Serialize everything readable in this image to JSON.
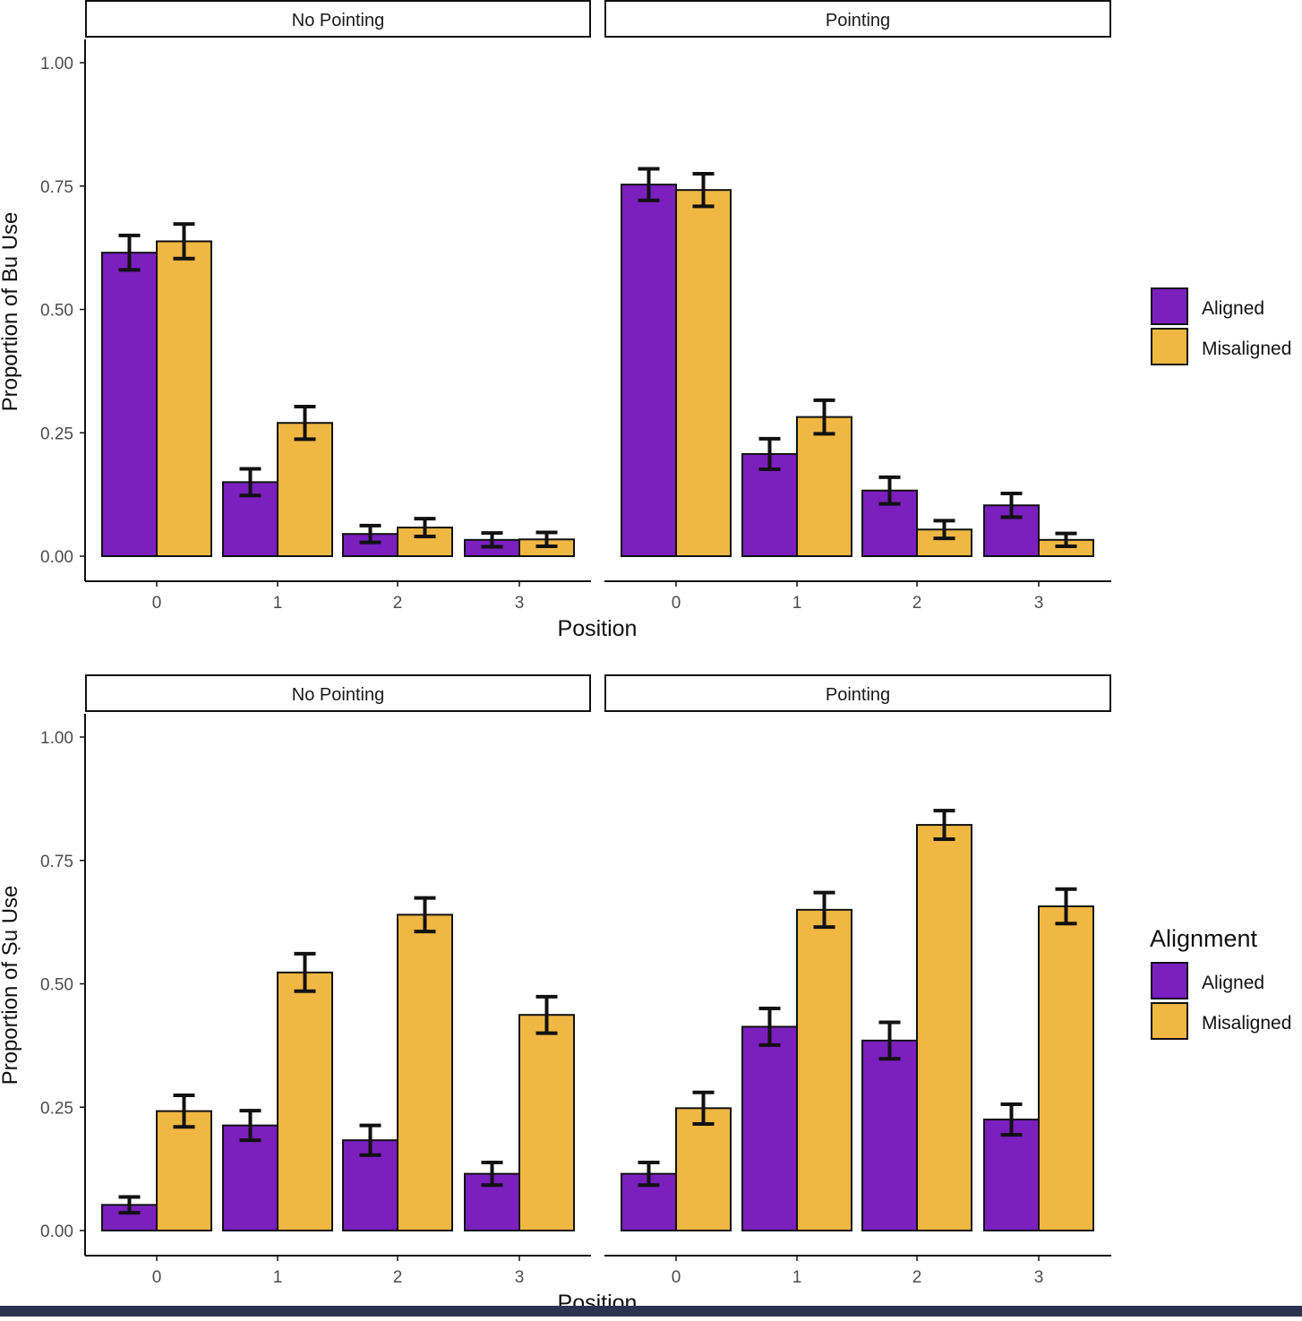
{
  "chart_data": [
    {
      "type": "bar",
      "ylabel": "Proportion of Bu Use",
      "xlabel": "Position",
      "ylim": [
        0,
        1.05
      ],
      "yticks": [
        "0.00",
        "0.25",
        "0.50",
        "0.75",
        "1.00"
      ],
      "categories": [
        "0",
        "1",
        "2",
        "3"
      ],
      "grid": false,
      "legend_position": "right",
      "legend_title": "",
      "legend_items": [
        "Aligned",
        "Misaligned"
      ],
      "panels": [
        {
          "facet": "No Pointing",
          "series": [
            {
              "name": "Aligned",
              "values": [
                0.615,
                0.15,
                0.045,
                0.033
              ],
              "error": [
                0.035,
                0.027,
                0.017,
                0.014
              ]
            },
            {
              "name": "Misaligned",
              "values": [
                0.638,
                0.27,
                0.058,
                0.034
              ],
              "error": [
                0.035,
                0.033,
                0.018,
                0.014
              ]
            }
          ]
        },
        {
          "facet": "Pointing",
          "series": [
            {
              "name": "Aligned",
              "values": [
                0.753,
                0.207,
                0.133,
                0.103
              ],
              "error": [
                0.032,
                0.031,
                0.027,
                0.024
              ]
            },
            {
              "name": "Misaligned",
              "values": [
                0.742,
                0.282,
                0.054,
                0.033
              ],
              "error": [
                0.033,
                0.034,
                0.018,
                0.013
              ]
            }
          ]
        }
      ]
    },
    {
      "type": "bar",
      "ylabel": "Proportion of Ṣu Use",
      "xlabel": "Position",
      "ylim": [
        0,
        1.05
      ],
      "yticks": [
        "0.00",
        "0.25",
        "0.50",
        "0.75",
        "1.00"
      ],
      "categories": [
        "0",
        "1",
        "2",
        "3"
      ],
      "grid": false,
      "legend_position": "right",
      "legend_title": "Alignment",
      "legend_items": [
        "Aligned",
        "Misaligned"
      ],
      "panels": [
        {
          "facet": "No Pointing",
          "series": [
            {
              "name": "Aligned",
              "values": [
                0.052,
                0.213,
                0.183,
                0.115
              ],
              "error": [
                0.016,
                0.03,
                0.03,
                0.023
              ]
            },
            {
              "name": "Misaligned",
              "values": [
                0.242,
                0.523,
                0.64,
                0.437
              ],
              "error": [
                0.032,
                0.038,
                0.034,
                0.037
              ]
            }
          ]
        },
        {
          "facet": "Pointing",
          "series": [
            {
              "name": "Aligned",
              "values": [
                0.115,
                0.413,
                0.385,
                0.225
              ],
              "error": [
                0.023,
                0.037,
                0.037,
                0.031
              ]
            },
            {
              "name": "Misaligned",
              "values": [
                0.248,
                0.65,
                0.822,
                0.657
              ],
              "error": [
                0.032,
                0.035,
                0.029,
                0.035
              ]
            }
          ]
        }
      ]
    }
  ],
  "colors": {
    "Aligned": "#7B1FBE",
    "Misaligned": "#F0B743",
    "outline": "#111111",
    "axis": "#111111",
    "tick_text": "#4d4d4d"
  }
}
